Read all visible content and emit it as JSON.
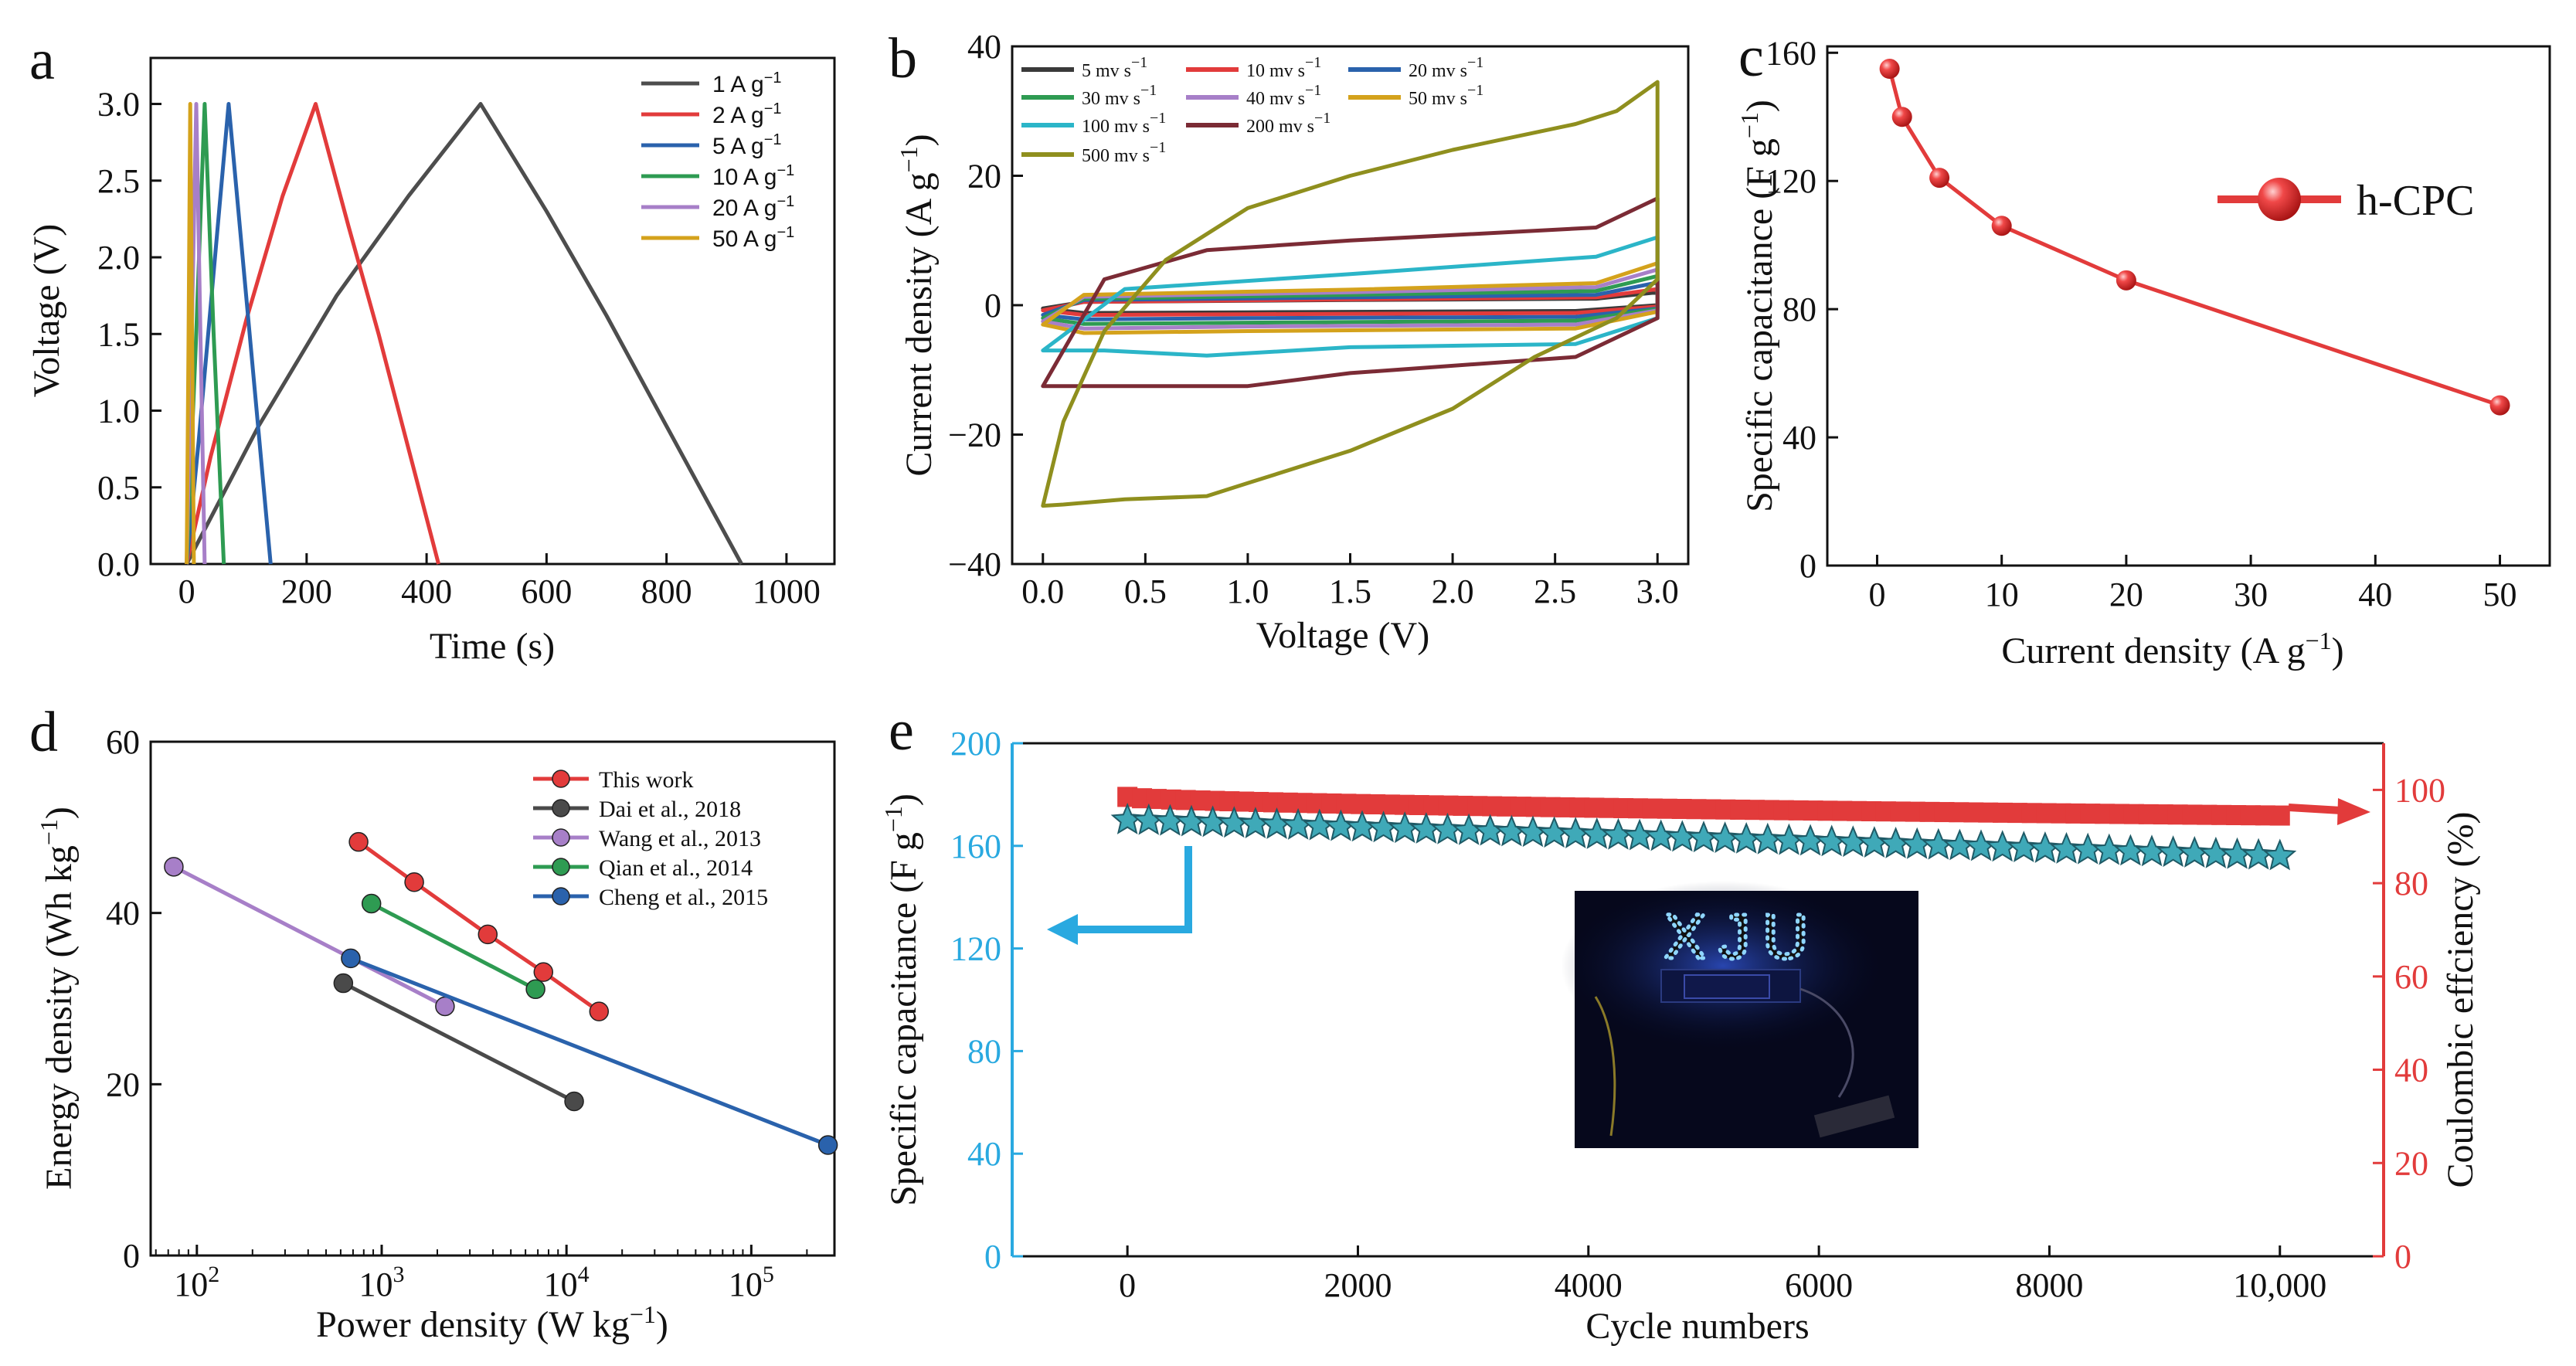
{
  "panels": {
    "a": {
      "letter": "a"
    },
    "b": {
      "letter": "b"
    },
    "c": {
      "letter": "c"
    },
    "d": {
      "letter": "d"
    },
    "e": {
      "letter": "e"
    }
  },
  "chart_data": [
    {
      "id": "a",
      "type": "line",
      "title": "",
      "xlabel": "Time (s)",
      "ylabel": "Voltage (V)",
      "xlim": [
        -60,
        1080
      ],
      "ylim": [
        0,
        3.3
      ],
      "xticks": [
        0,
        200,
        400,
        600,
        800,
        1000
      ],
      "xtick_labels": [
        "0",
        "200",
        "400",
        "600",
        "800",
        "1000"
      ],
      "yticks": [
        0,
        0.5,
        1.0,
        1.5,
        2.0,
        2.5,
        3.0
      ],
      "ytick_labels": [
        "0.0",
        "0.5",
        "1.0",
        "1.5",
        "2.0",
        "2.5",
        "3.0"
      ],
      "legend_position": "top-right",
      "series": [
        {
          "name": "1 A g⁻¹",
          "label": "1 A g",
          "sup": "−1",
          "color": "#4d4d4d",
          "x": [
            0,
            120,
            250,
            370,
            490,
            600,
            700,
            800,
            925
          ],
          "y": [
            0,
            0.9,
            1.75,
            2.4,
            3.0,
            2.3,
            1.62,
            0.9,
            0
          ]
        },
        {
          "name": "2 A g⁻¹",
          "label": "2 A g",
          "sup": "−1",
          "color": "#e23b3b",
          "x": [
            0,
            40,
            100,
            160,
            215,
            270,
            320,
            370,
            420
          ],
          "y": [
            0,
            0.7,
            1.6,
            2.4,
            3.0,
            2.2,
            1.5,
            0.75,
            0
          ]
        },
        {
          "name": "5 A g⁻¹",
          "label": "5 A g",
          "sup": "−1",
          "color": "#2a62ac",
          "x": [
            0,
            20,
            45,
            70,
            105,
            140
          ],
          "y": [
            0,
            0.8,
            1.9,
            3.0,
            1.5,
            0
          ]
        },
        {
          "name": "10 A g⁻¹",
          "label": "10 A g",
          "sup": "−1",
          "color": "#2e9b52",
          "x": [
            0,
            15,
            30,
            45,
            62
          ],
          "y": [
            0,
            1.4,
            3.0,
            1.5,
            0
          ]
        },
        {
          "name": "20 A g⁻¹",
          "label": "20 A g",
          "sup": "−1",
          "color": "#a77fc8",
          "x": [
            0,
            8,
            16,
            23,
            30
          ],
          "y": [
            0,
            1.4,
            3.0,
            1.5,
            0
          ]
        },
        {
          "name": "50 A g⁻¹",
          "label": "50 A g",
          "sup": "−1",
          "color": "#d4a21c",
          "x": [
            0,
            3,
            6,
            9,
            12
          ],
          "y": [
            0,
            1.4,
            3.0,
            1.5,
            0
          ]
        }
      ]
    },
    {
      "id": "b",
      "type": "line",
      "title": "",
      "xlabel": "Voltage (V)",
      "ylabel": "Current density (A g⁻¹)",
      "ylabel_main": "Current density (A g",
      "ylabel_sup": "−1",
      "xlim": [
        -0.15,
        3.15
      ],
      "ylim": [
        -40,
        40
      ],
      "xticks": [
        0,
        0.5,
        1.0,
        1.5,
        2.0,
        2.5,
        3.0
      ],
      "xtick_labels": [
        "0.0",
        "0.5",
        "1.0",
        "1.5",
        "2.0",
        "2.5",
        "3.0"
      ],
      "yticks": [
        -40,
        -20,
        0,
        20,
        40
      ],
      "ytick_labels": [
        "−40",
        "−20",
        "0",
        "20",
        "40"
      ],
      "legend_position": "top",
      "series": [
        {
          "name": "5 mv s⁻¹",
          "label": "5 mv s",
          "sup": "−1",
          "color": "#3a3a3a",
          "upper": [
            [
              0,
              -0.5
            ],
            [
              0.2,
              0.5
            ],
            [
              1.5,
              0.8
            ],
            [
              2.7,
              1.0
            ],
            [
              3.0,
              2.0
            ]
          ],
          "lower": [
            [
              3.0,
              0.0
            ],
            [
              2.6,
              -0.9
            ],
            [
              1.0,
              -1.1
            ],
            [
              0.2,
              -1.2
            ],
            [
              0,
              -0.5
            ]
          ]
        },
        {
          "name": "10 mv s⁻¹",
          "label": "10 mv s",
          "sup": "−1",
          "color": "#e23b3b",
          "upper": [
            [
              0,
              -0.8
            ],
            [
              0.2,
              0.5
            ],
            [
              1.5,
              0.9
            ],
            [
              2.7,
              1.2
            ],
            [
              3.0,
              2.5
            ]
          ],
          "lower": [
            [
              3.0,
              -0.2
            ],
            [
              2.6,
              -1.2
            ],
            [
              1.0,
              -1.4
            ],
            [
              0.2,
              -1.5
            ],
            [
              0,
              -0.8
            ]
          ]
        },
        {
          "name": "20 mv s⁻¹",
          "label": "20 mv s",
          "sup": "−1",
          "color": "#2a62ac",
          "upper": [
            [
              0,
              -1.5
            ],
            [
              0.2,
              0.8
            ],
            [
              1.5,
              1.2
            ],
            [
              2.7,
              1.6
            ],
            [
              3.0,
              3.5
            ]
          ],
          "lower": [
            [
              3.0,
              -0.5
            ],
            [
              2.6,
              -1.8
            ],
            [
              1.0,
              -2.0
            ],
            [
              0.2,
              -2.2
            ],
            [
              0,
              -1.5
            ]
          ]
        },
        {
          "name": "30 mv s⁻¹",
          "label": "30 mv s",
          "sup": "−1",
          "color": "#2e9b52",
          "upper": [
            [
              0,
              -2.0
            ],
            [
              0.2,
              1.0
            ],
            [
              1.5,
              1.6
            ],
            [
              2.7,
              2.2
            ],
            [
              3.0,
              4.5
            ]
          ],
          "lower": [
            [
              3.0,
              -0.6
            ],
            [
              2.6,
              -2.4
            ],
            [
              1.0,
              -2.7
            ],
            [
              0.2,
              -2.9
            ],
            [
              0,
              -2.0
            ]
          ]
        },
        {
          "name": "40 mv s⁻¹",
          "label": "40 mv s",
          "sup": "−1",
          "color": "#a77fc8",
          "upper": [
            [
              0,
              -2.5
            ],
            [
              0.2,
              1.3
            ],
            [
              1.5,
              2.0
            ],
            [
              2.7,
              2.8
            ],
            [
              3.0,
              5.5
            ]
          ],
          "lower": [
            [
              3.0,
              -0.8
            ],
            [
              2.6,
              -3.0
            ],
            [
              1.0,
              -3.3
            ],
            [
              0.2,
              -3.6
            ],
            [
              0,
              -2.5
            ]
          ]
        },
        {
          "name": "50 mv s⁻¹",
          "label": "50 mv s",
          "sup": "−1",
          "color": "#d4a21c",
          "upper": [
            [
              0,
              -3.0
            ],
            [
              0.2,
              1.6
            ],
            [
              1.5,
              2.4
            ],
            [
              2.7,
              3.4
            ],
            [
              3.0,
              6.5
            ]
          ],
          "lower": [
            [
              3.0,
              -1.0
            ],
            [
              2.6,
              -3.6
            ],
            [
              1.0,
              -4.0
            ],
            [
              0.2,
              -4.3
            ],
            [
              0,
              -3.0
            ]
          ]
        },
        {
          "name": "100 mv s⁻¹",
          "label": "100 mv s",
          "sup": "−1",
          "color": "#2bb5c8",
          "upper": [
            [
              0,
              -7.0
            ],
            [
              0.4,
              2.5
            ],
            [
              1.5,
              4.8
            ],
            [
              2.7,
              7.5
            ],
            [
              3.0,
              10.5
            ]
          ],
          "lower": [
            [
              3.0,
              -2.0
            ],
            [
              2.6,
              -6.0
            ],
            [
              1.5,
              -6.5
            ],
            [
              0.8,
              -7.8
            ],
            [
              0.3,
              -7.0
            ],
            [
              0,
              -7.0
            ]
          ]
        },
        {
          "name": "200 mv s⁻¹",
          "label": "200 mv s",
          "sup": "−1",
          "color": "#7b2b35",
          "upper": [
            [
              0,
              -12.5
            ],
            [
              0.3,
              4.0
            ],
            [
              0.8,
              8.5
            ],
            [
              1.5,
              10.0
            ],
            [
              2.7,
              12.0
            ],
            [
              3.0,
              16.5
            ]
          ],
          "lower": [
            [
              3.0,
              -2.0
            ],
            [
              2.6,
              -8.0
            ],
            [
              1.5,
              -10.5
            ],
            [
              1.0,
              -12.5
            ],
            [
              0.5,
              -12.5
            ],
            [
              0,
              -12.5
            ]
          ]
        },
        {
          "name": "500 mv s⁻¹",
          "label": "500 mv s",
          "sup": "−1",
          "color": "#8f8f1e",
          "upper": [
            [
              0,
              -31.0
            ],
            [
              0.1,
              -18.0
            ],
            [
              0.3,
              -4.0
            ],
            [
              0.6,
              7.0
            ],
            [
              1.0,
              15.0
            ],
            [
              1.5,
              20.0
            ],
            [
              2.0,
              24.0
            ],
            [
              2.6,
              28.0
            ],
            [
              2.8,
              30.0
            ],
            [
              3.0,
              34.5
            ]
          ],
          "lower": [
            [
              3.0,
              4.0
            ],
            [
              2.8,
              -2.0
            ],
            [
              2.4,
              -8.0
            ],
            [
              2.0,
              -16.0
            ],
            [
              1.5,
              -22.5
            ],
            [
              1.0,
              -27.5
            ],
            [
              0.8,
              -29.5
            ],
            [
              0.4,
              -30.0
            ],
            [
              0.1,
              -30.8
            ],
            [
              0,
              -31.0
            ]
          ]
        }
      ]
    },
    {
      "id": "c",
      "type": "line",
      "title": "",
      "xlabel": "Current density (A g⁻¹)",
      "xlabel_main": "Current density (A g",
      "xlabel_sup": "−1",
      "ylabel": "Specific capacitance (F g⁻¹)",
      "ylabel_main": "Specific capacitance (F g",
      "ylabel_sup": "−1",
      "xlim": [
        -4,
        54
      ],
      "ylim": [
        0,
        162
      ],
      "xticks": [
        0,
        10,
        20,
        30,
        40,
        50
      ],
      "xtick_labels": [
        "0",
        "10",
        "20",
        "30",
        "40",
        "50"
      ],
      "yticks": [
        0,
        40,
        80,
        120,
        160
      ],
      "ytick_labels": [
        "0",
        "40",
        "80",
        "120",
        "160"
      ],
      "legend_position": "top-right",
      "series": [
        {
          "name": "h-CPC",
          "color": "#e23b3b",
          "x": [
            1,
            2,
            5,
            10,
            20,
            50
          ],
          "y": [
            155,
            140,
            121,
            106,
            89,
            50
          ]
        }
      ]
    },
    {
      "id": "d",
      "type": "line",
      "title": "",
      "xlabel": "Power density (W kg⁻¹)",
      "xlabel_main": "Power density (W kg",
      "xlabel_sup": "−1",
      "ylabel": "Energy density (Wh kg⁻¹)",
      "ylabel_main": "Energy density (Wh kg",
      "ylabel_sup": "−1",
      "xscale": "log",
      "xlim_log10": [
        1.75,
        5.45
      ],
      "ylim": [
        0,
        60
      ],
      "xticks_log10": [
        2,
        3,
        4,
        5
      ],
      "xtick_labels": [
        "10",
        "10",
        "10",
        "10"
      ],
      "xtick_sups": [
        "2",
        "3",
        "4",
        "5"
      ],
      "yticks": [
        0,
        20,
        40,
        60
      ],
      "ytick_labels": [
        "0",
        "20",
        "40",
        "60"
      ],
      "legend_position": "top-right",
      "series": [
        {
          "name": "This work",
          "color": "#e23b3b",
          "x": [
            750,
            1500,
            3750,
            7500,
            15000
          ],
          "y": [
            48.3,
            43.6,
            37.5,
            33.1,
            28.5
          ]
        },
        {
          "name": "Dai et al., 2018",
          "color": "#4a4a4a",
          "x": [
            620,
            11000
          ],
          "y": [
            31.8,
            18.0
          ]
        },
        {
          "name": "Wang et al., 2013",
          "color": "#a77fc8",
          "x": [
            75,
            2200
          ],
          "y": [
            45.4,
            29.1
          ]
        },
        {
          "name": "Qian et al., 2014",
          "color": "#2e9b52",
          "x": [
            880,
            6800
          ],
          "y": [
            41.1,
            31.1
          ]
        },
        {
          "name": "Cheng et al., 2015",
          "color": "#2a62ac",
          "x": [
            680,
            260000
          ],
          "y": [
            34.7,
            12.9
          ]
        }
      ]
    },
    {
      "id": "e",
      "type": "scatter",
      "title": "",
      "xlabel": "Cycle numbers",
      "ylabel": "Specific capacitance (F g⁻¹)",
      "ylabel_main": "Specific capacitance (F g",
      "ylabel_sup": "−1",
      "y2label": "Coulombic effciency (%)",
      "xlim": [
        -1000,
        10900
      ],
      "ylim": [
        0,
        200
      ],
      "y2lim": [
        0,
        110
      ],
      "xticks": [
        0,
        2000,
        4000,
        6000,
        8000,
        10000
      ],
      "xtick_labels": [
        "0",
        "2000",
        "4000",
        "6000",
        "8000",
        "10,000"
      ],
      "yticks": [
        0,
        40,
        80,
        120,
        160,
        200
      ],
      "ytick_labels": [
        "0",
        "40",
        "80",
        "120",
        "160",
        "200"
      ],
      "y2ticks": [
        0,
        20,
        40,
        60,
        80,
        100
      ],
      "y2tick_labels": [
        "0",
        "20",
        "40",
        "60",
        "80",
        "100"
      ],
      "left_color": "#29a9e0",
      "right_color": "#e23b3b",
      "series": [
        {
          "name": "Specific capacitance",
          "axis": "left",
          "marker": "star",
          "color": "#3fa9b8",
          "x_start": 0,
          "x_end": 10000,
          "count": 55,
          "y_start": 170,
          "y_end": 156
        },
        {
          "name": "Coulombic efficiency",
          "axis": "right",
          "marker": "square",
          "color": "#e23b3b",
          "x_start": 0,
          "x_end": 10000,
          "count": 80,
          "y_start": 98.5,
          "y_end": 94.5
        }
      ],
      "inset_text": "XJU"
    }
  ]
}
